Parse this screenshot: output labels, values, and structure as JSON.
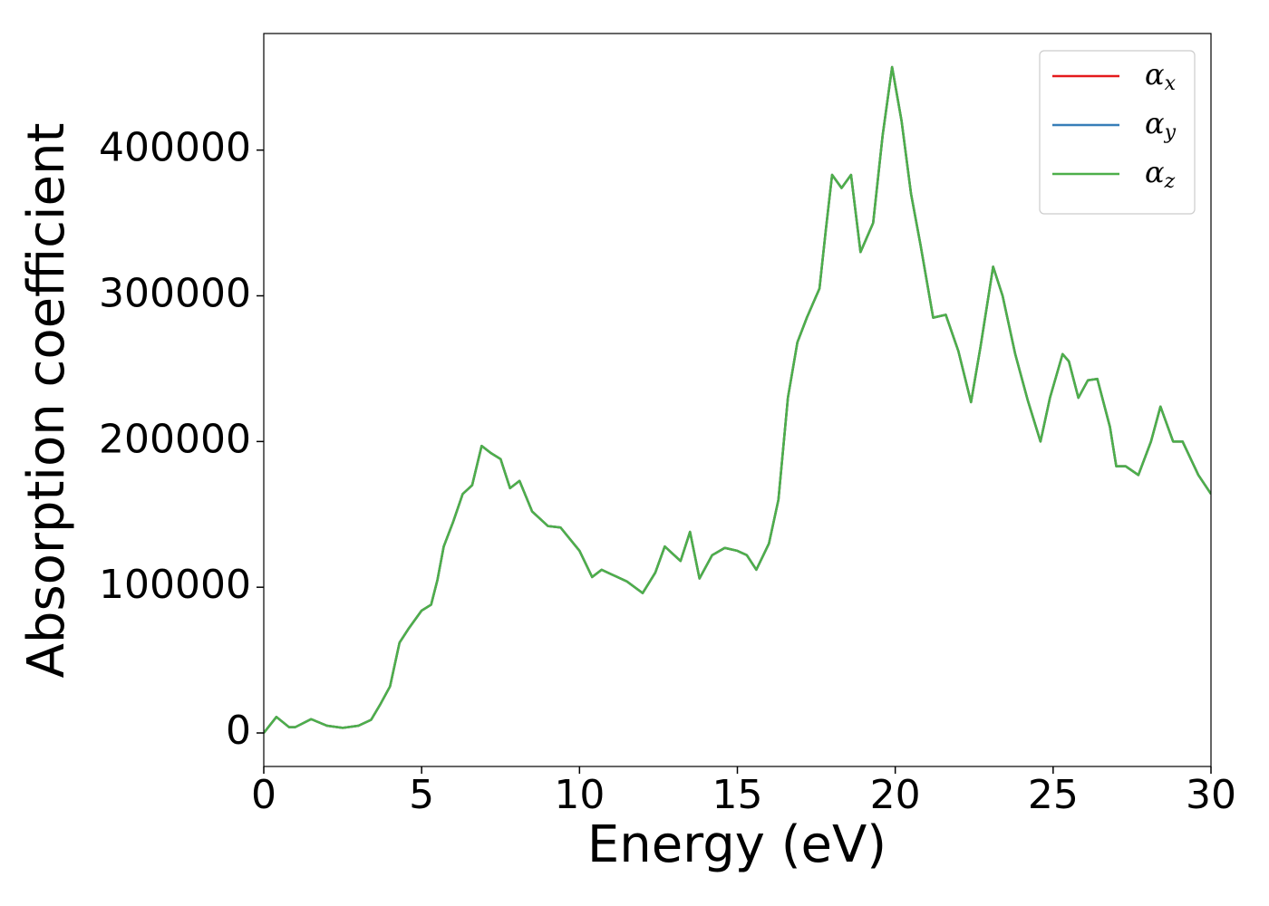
{
  "chart_data": {
    "type": "line",
    "xlabel": "Energy (eV)",
    "ylabel": "Absorption coefficient",
    "x": [
      0,
      0.4,
      0.8,
      1.0,
      1.5,
      2.0,
      2.5,
      3.0,
      3.4,
      3.7,
      4.0,
      4.3,
      4.6,
      5.0,
      5.3,
      5.5,
      5.7,
      6.0,
      6.3,
      6.6,
      6.9,
      7.2,
      7.5,
      7.8,
      8.1,
      8.5,
      9.0,
      9.4,
      10.0,
      10.4,
      10.7,
      11.0,
      11.5,
      12.0,
      12.4,
      12.7,
      13.0,
      13.2,
      13.5,
      13.8,
      14.2,
      14.6,
      15.0,
      15.3,
      15.6,
      16.0,
      16.3,
      16.6,
      16.9,
      17.2,
      17.4,
      17.6,
      17.8,
      18.0,
      18.3,
      18.6,
      18.9,
      19.3,
      19.6,
      19.9,
      20.2,
      20.5,
      20.8,
      21.2,
      21.6,
      22.0,
      22.4,
      22.7,
      23.1,
      23.4,
      23.8,
      24.2,
      24.6,
      24.9,
      25.3,
      25.5,
      25.8,
      26.1,
      26.4,
      26.8,
      27.0,
      27.3,
      27.7,
      28.1,
      28.4,
      28.8,
      29.1,
      29.6,
      30.0
    ],
    "series": [
      {
        "name": "αx",
        "color": "#e41a1c",
        "values": [
          0,
          11000,
          4000,
          4000,
          9500,
          5000,
          3500,
          5000,
          9000,
          20000,
          32000,
          62000,
          72000,
          84000,
          88000,
          105000,
          128000,
          145000,
          164000,
          170000,
          197000,
          192000,
          188000,
          168000,
          173000,
          152000,
          142000,
          141000,
          125000,
          107000,
          112000,
          109000,
          104000,
          96000,
          110000,
          128000,
          122000,
          118000,
          138000,
          106000,
          122000,
          127000,
          125000,
          122000,
          112000,
          130000,
          160000,
          230000,
          268000,
          285000,
          295000,
          305000,
          345000,
          383000,
          374000,
          383000,
          330000,
          350000,
          410000,
          457000,
          420000,
          370000,
          335000,
          285000,
          287000,
          262000,
          227000,
          265000,
          320000,
          300000,
          260000,
          228000,
          200000,
          230000,
          260000,
          255000,
          230000,
          242000,
          243000,
          210000,
          183000,
          183000,
          177000,
          200000,
          224000,
          200000,
          200000,
          177000,
          164000
        ]
      },
      {
        "name": "αy",
        "color": "#377eb8",
        "values": [
          0,
          11000,
          4000,
          4000,
          9500,
          5000,
          3500,
          5000,
          9000,
          20000,
          32000,
          62000,
          72000,
          84000,
          88000,
          105000,
          128000,
          145000,
          164000,
          170000,
          197000,
          192000,
          188000,
          168000,
          173000,
          152000,
          142000,
          141000,
          125000,
          107000,
          112000,
          109000,
          104000,
          96000,
          110000,
          128000,
          122000,
          118000,
          138000,
          106000,
          122000,
          127000,
          125000,
          122000,
          112000,
          130000,
          160000,
          230000,
          268000,
          285000,
          295000,
          305000,
          345000,
          383000,
          374000,
          383000,
          330000,
          350000,
          410000,
          457000,
          420000,
          370000,
          335000,
          285000,
          287000,
          262000,
          227000,
          265000,
          320000,
          300000,
          260000,
          228000,
          200000,
          230000,
          260000,
          255000,
          230000,
          242000,
          243000,
          210000,
          183000,
          183000,
          177000,
          200000,
          224000,
          200000,
          200000,
          177000,
          164000
        ]
      },
      {
        "name": "αz",
        "color": "#4daf4a",
        "values": [
          0,
          11000,
          4000,
          4000,
          9500,
          5000,
          3500,
          5000,
          9000,
          20000,
          32000,
          62000,
          72000,
          84000,
          88000,
          105000,
          128000,
          145000,
          164000,
          170000,
          197000,
          192000,
          188000,
          168000,
          173000,
          152000,
          142000,
          141000,
          125000,
          107000,
          112000,
          109000,
          104000,
          96000,
          110000,
          128000,
          122000,
          118000,
          138000,
          106000,
          122000,
          127000,
          125000,
          122000,
          112000,
          130000,
          160000,
          230000,
          268000,
          285000,
          295000,
          305000,
          345000,
          383000,
          374000,
          383000,
          330000,
          350000,
          410000,
          457000,
          420000,
          370000,
          335000,
          285000,
          287000,
          262000,
          227000,
          265000,
          320000,
          300000,
          260000,
          228000,
          200000,
          230000,
          260000,
          255000,
          230000,
          242000,
          243000,
          210000,
          183000,
          183000,
          177000,
          200000,
          224000,
          200000,
          200000,
          177000,
          164000
        ]
      }
    ],
    "xlim": [
      0,
      30
    ],
    "xticks": [
      0,
      5,
      10,
      15,
      20,
      25,
      30
    ],
    "ylim": [
      -23000,
      480000
    ],
    "yticks": [
      0,
      100000,
      200000,
      300000,
      400000
    ],
    "grid": false,
    "legend": "upper right"
  }
}
